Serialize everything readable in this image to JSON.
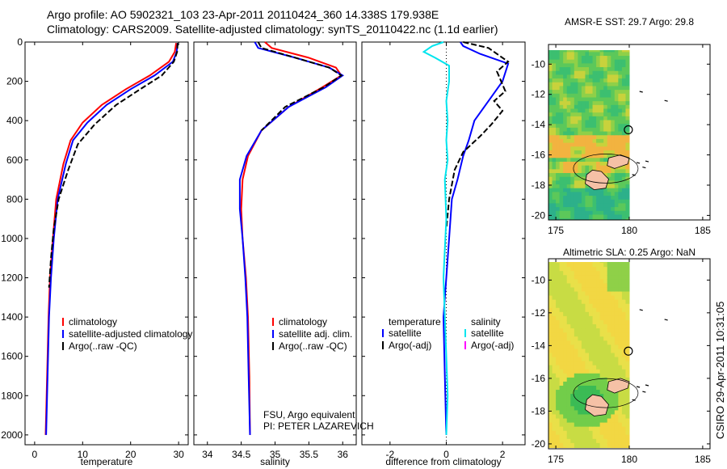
{
  "header": {
    "line1": "Argo profile: AO 5902321_103 23-Apr-2011 20110424_360 14.338S 179.938E",
    "line2": "Climatology: CARS2009. Satellite-adjusted climatology: synTS_20110422.nc (1.1d earlier)"
  },
  "side_text": "CSIRO 29-Apr-2011 10:31:05",
  "colors": {
    "red": "#ff0000",
    "blue": "#0000ff",
    "black": "#000000",
    "cyan": "#00e5ee",
    "magenta": "#ff00ff"
  },
  "chart_data": [
    {
      "type": "line",
      "xlabel": "temperature",
      "xlim": [
        -2,
        32
      ],
      "xticks": [
        0,
        10,
        20,
        30
      ],
      "ylim": [
        2050,
        0
      ],
      "yticks": [
        0,
        200,
        400,
        600,
        800,
        1000,
        1200,
        1400,
        1600,
        1800,
        2000
      ],
      "series": [
        {
          "name": "climatology",
          "color": "red",
          "x": [
            29.5,
            29.2,
            28,
            24,
            19,
            14,
            10,
            7.5,
            6,
            4.5,
            3.8,
            3.2,
            2.9,
            2.6,
            2.3
          ],
          "y": [
            5,
            50,
            100,
            170,
            240,
            320,
            410,
            500,
            620,
            800,
            1000,
            1200,
            1400,
            1700,
            2000
          ]
        },
        {
          "name": "satellite-adjusted climatology",
          "color": "blue",
          "x": [
            29.8,
            29.6,
            28.8,
            25,
            20,
            15,
            11,
            8,
            6.5,
            4.8,
            4,
            3.4,
            3,
            2.7,
            2.4
          ],
          "y": [
            5,
            50,
            100,
            170,
            240,
            320,
            410,
            500,
            620,
            800,
            1000,
            1200,
            1400,
            1700,
            2000
          ]
        },
        {
          "name": "Argo(..raw -QC)",
          "color": "black",
          "x": [
            29.8,
            29.7,
            29,
            26.5,
            22,
            17,
            12.5,
            9,
            7,
            5,
            4,
            3.4,
            3
          ],
          "y": [
            5,
            50,
            100,
            170,
            240,
            320,
            420,
            520,
            650,
            800,
            950,
            1100,
            1250
          ]
        }
      ],
      "legend": [
        {
          "label": "climatology",
          "color": "red"
        },
        {
          "label": "satellite-adjusted climatology",
          "color": "blue"
        },
        {
          "label": "Argo(..raw -QC)",
          "color": "black"
        }
      ],
      "legend_placement": "bottom-right"
    },
    {
      "type": "line",
      "xlabel": "salinity",
      "xlim": [
        33.8,
        36.2
      ],
      "xticks": [
        34,
        34.5,
        35,
        35.5,
        36
      ],
      "ylim": [
        2050,
        0
      ],
      "series": [
        {
          "name": "climatology",
          "color": "red",
          "x": [
            34.85,
            34.95,
            35.5,
            35.9,
            35.98,
            35.7,
            35.2,
            34.8,
            34.6,
            34.52,
            34.5,
            34.52,
            34.57,
            34.6,
            34.62,
            34.63
          ],
          "y": [
            0,
            30,
            80,
            130,
            170,
            230,
            330,
            450,
            580,
            700,
            850,
            1000,
            1200,
            1400,
            1700,
            2000
          ]
        },
        {
          "name": "satellite adj. clim.",
          "color": "blue",
          "x": [
            34.7,
            34.75,
            35.3,
            35.8,
            36,
            35.75,
            35.2,
            34.8,
            34.58,
            34.48,
            34.48,
            34.52,
            34.56,
            34.59,
            34.61,
            34.63
          ],
          "y": [
            0,
            30,
            80,
            130,
            170,
            230,
            330,
            450,
            580,
            700,
            850,
            1000,
            1200,
            1400,
            1700,
            2000
          ]
        },
        {
          "name": "Argo(..raw -QC)",
          "color": "black",
          "x": [
            34.75,
            34.8,
            35.3,
            35.8,
            35.98,
            35.72,
            35.15,
            34.8
          ],
          "y": [
            0,
            30,
            80,
            130,
            170,
            230,
            330,
            450
          ]
        }
      ],
      "legend": [
        {
          "label": "climatology",
          "color": "red"
        },
        {
          "label": "satellite adj. clim.",
          "color": "blue"
        },
        {
          "label": "Argo(..raw -QC)",
          "color": "black"
        }
      ],
      "annotation": [
        "FSU, Argo equivalent",
        "PI: PETER LAZAREVICH"
      ]
    },
    {
      "type": "line",
      "xlabel": "difference from climatology",
      "xlim": [
        -3,
        2.8
      ],
      "xticks": [
        -2,
        0,
        2
      ],
      "ylim": [
        2050,
        0
      ],
      "series": [
        {
          "name": "temperature satellite",
          "color": "blue",
          "x": [
            0.5,
            0.6,
            1.2,
            2.2,
            2,
            1.5,
            1,
            0.8,
            0.6,
            0.4,
            0.2,
            0.1,
            0,
            -0.1,
            -0.05,
            0
          ],
          "y": [
            0,
            20,
            60,
            110,
            200,
            300,
            400,
            500,
            580,
            700,
            800,
            1000,
            1200,
            1400,
            1700,
            2000
          ]
        },
        {
          "name": "temperature Argo(-adj)",
          "color": "black",
          "x": [
            0.6,
            1.5,
            2.2,
            1.8,
            2.1,
            1.7,
            2.0,
            1.6,
            1.2,
            0.6,
            0.3,
            0.1,
            0
          ],
          "y": [
            0,
            30,
            100,
            150,
            250,
            300,
            350,
            420,
            480,
            560,
            650,
            800,
            950
          ]
        },
        {
          "name": "salinity satellite",
          "color": "cyan",
          "x": [
            -0.1,
            -0.5,
            -0.8,
            -0.4,
            0.1,
            0.1,
            0,
            0.05,
            0,
            0.05,
            -0.05,
            0,
            -0.1,
            -0.05,
            0,
            0.05,
            0
          ],
          "y": [
            0,
            20,
            50,
            80,
            120,
            200,
            300,
            400,
            500,
            600,
            700,
            900,
            1200,
            1400,
            1600,
            1800,
            2000
          ]
        },
        {
          "name": "salinity Argo(-adj)",
          "color": "magenta",
          "x": [],
          "y": []
        }
      ],
      "legend_groups": [
        {
          "title": "temperature",
          "items": [
            {
              "label": "satellite",
              "color": "blue"
            },
            {
              "label": "Argo(-adj)",
              "color": "black"
            }
          ]
        },
        {
          "title": "salinity",
          "items": [
            {
              "label": "satellite",
              "color": "cyan"
            },
            {
              "label": "Argo(-adj)",
              "color": "magenta"
            }
          ]
        }
      ],
      "zero_line": "dotted"
    },
    {
      "type": "heatmap",
      "title": "AMSR-E SST: 29.7 Argo: 29.8",
      "xlim": [
        174.5,
        185.5
      ],
      "xticks": [
        175,
        180,
        185
      ],
      "ylim": [
        -20.3,
        -8.7
      ],
      "yticks": [
        -10,
        -12,
        -14,
        -16,
        -18,
        -20
      ],
      "data_east_limit": 180,
      "argo_location": {
        "lon": 179.938,
        "lat": -14.338
      }
    },
    {
      "type": "heatmap",
      "title": "Altimetric SLA: 0.25 Argo: NaN",
      "xlim": [
        174.5,
        185.5
      ],
      "xticks": [
        175,
        180,
        185
      ],
      "ylim": [
        -20.3,
        -8.7
      ],
      "yticks": [
        -10,
        -12,
        -14,
        -16,
        -18,
        -20
      ],
      "data_east_limit": 180,
      "argo_location": {
        "lon": 179.938,
        "lat": -14.338
      }
    }
  ]
}
